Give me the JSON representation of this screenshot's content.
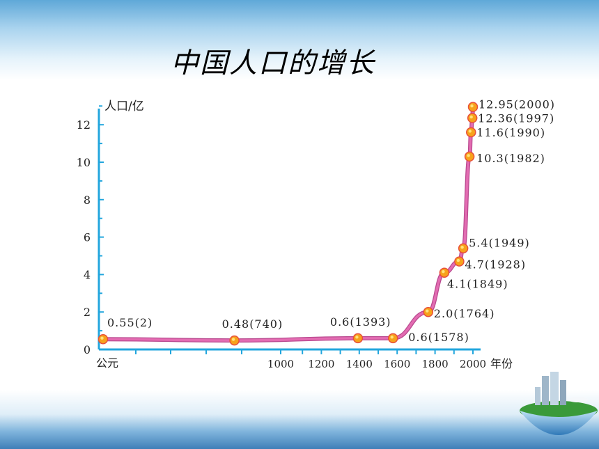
{
  "slide": {
    "title": "中国人口的增长"
  },
  "chart_data": {
    "type": "line",
    "ylabel": "人口/亿",
    "xlabel": "年份",
    "x_origin_label": "公元",
    "y_ticks": [
      "0",
      "2",
      "4",
      "6",
      "8",
      "10",
      "12"
    ],
    "x_ticks": [
      "1000",
      "1200",
      "1400",
      "1600",
      "1800",
      "2000"
    ],
    "ylim": [
      0,
      13
    ],
    "line_color": "#e36cb2",
    "point_color": "#f7a21b",
    "axis_color": "#22a6dd",
    "points": [
      {
        "year": 2,
        "value": 0.55,
        "label": "0.55(2)"
      },
      {
        "year": 740,
        "value": 0.48,
        "label": "0.48(740)"
      },
      {
        "year": 1393,
        "value": 0.6,
        "label": "0.6(1393)"
      },
      {
        "year": 1578,
        "value": 0.6,
        "label": "0.6(1578)"
      },
      {
        "year": 1764,
        "value": 2.0,
        "label": "2.0(1764)"
      },
      {
        "year": 1849,
        "value": 4.1,
        "label": "4.1(1849)"
      },
      {
        "year": 1928,
        "value": 4.7,
        "label": "4.7(1928)"
      },
      {
        "year": 1949,
        "value": 5.4,
        "label": "5.4(1949)"
      },
      {
        "year": 1982,
        "value": 10.3,
        "label": "10.3(1982)"
      },
      {
        "year": 1990,
        "value": 11.6,
        "label": "11.6(1990)"
      },
      {
        "year": 1997,
        "value": 12.36,
        "label": "12.36(1997)"
      },
      {
        "year": 2000,
        "value": 12.95,
        "label": "12.95(2000)"
      }
    ]
  }
}
